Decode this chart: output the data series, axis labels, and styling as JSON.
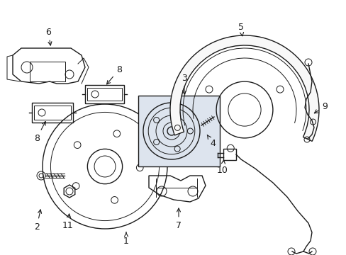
{
  "bg_color": "#ffffff",
  "line_color": "#1a1a1a",
  "box_color": "#dde4ee",
  "figsize": [
    4.89,
    3.6
  ],
  "dpi": 100,
  "xlim": [
    0,
    489
  ],
  "ylim": [
    0,
    360
  ]
}
